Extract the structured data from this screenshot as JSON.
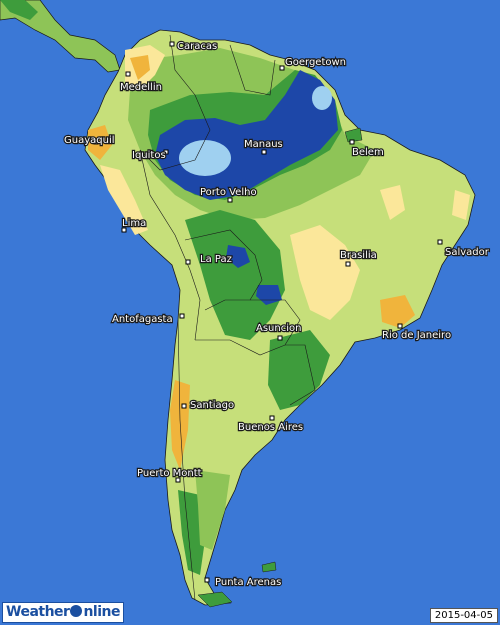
{
  "map": {
    "date": "2015-04-05",
    "brand": {
      "part1": "Weather",
      "part2": "nline"
    },
    "cities": [
      {
        "name": "Caracas"
      },
      {
        "name": "Goergetown"
      },
      {
        "name": "Medellin"
      },
      {
        "name": "Guayaquil"
      },
      {
        "name": "Iquitos"
      },
      {
        "name": "Manaus"
      },
      {
        "name": "Belem"
      },
      {
        "name": "Porto Velho"
      },
      {
        "name": "Lima"
      },
      {
        "name": "Brasilia"
      },
      {
        "name": "Salvador"
      },
      {
        "name": "La Paz"
      },
      {
        "name": "Antofagasta"
      },
      {
        "name": "Asuncion"
      },
      {
        "name": "Rio de Janeiro"
      },
      {
        "name": "Santiago"
      },
      {
        "name": "Buenos Aires"
      },
      {
        "name": "Puerto Montt"
      },
      {
        "name": "Punta Arenas"
      }
    ],
    "colors": {
      "ocean": "#3b78d6",
      "dry": "#f0b43c",
      "dry_light": "#fbe79a",
      "moderate": "#c6df7a",
      "wet": "#8ec457",
      "wetter": "#3e9c3c",
      "very_wet": "#1d47a8",
      "saturated": "#9fd0f0"
    }
  }
}
